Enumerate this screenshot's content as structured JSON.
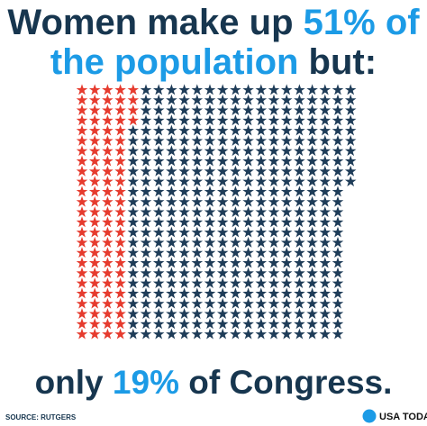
{
  "chart_data": {
    "type": "pictogram",
    "title_lines": [
      [
        {
          "text": "Women make up ",
          "color": "#17364f"
        },
        {
          "text": "51% of",
          "color": "#1c9be6"
        }
      ],
      [
        {
          "text": "the population",
          "color": "#1c9be6"
        },
        {
          "text": " but:",
          "color": "#17364f"
        }
      ]
    ],
    "footer_line": [
      {
        "text": "only ",
        "color": "#17364f"
      },
      {
        "text": "19%",
        "color": "#1c9be6"
      },
      {
        "text": " of Congress.",
        "color": "#17364f"
      }
    ],
    "series": [
      {
        "color": "#e63b2e",
        "values": [
          104
        ]
      },
      {
        "color": "#1e3c58",
        "values": [
          431
        ]
      }
    ],
    "rows": 25,
    "source": "SOURCE: RUTGERS",
    "logo": "USA TODAY"
  }
}
